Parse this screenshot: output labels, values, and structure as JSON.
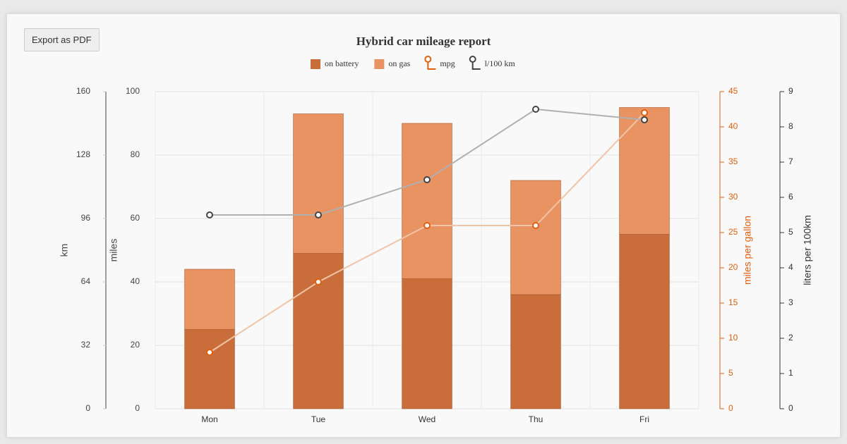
{
  "button": {
    "label": "Export as PDF"
  },
  "chart_data": {
    "type": "bar",
    "stacked": true,
    "title": "Hybrid car mileage report",
    "categories": [
      "Mon",
      "Tue",
      "Wed",
      "Thu",
      "Fri"
    ],
    "axes": [
      {
        "id": "y",
        "label": "miles",
        "side": "left",
        "lim": [
          0,
          100
        ],
        "ticks": [
          0,
          20,
          40,
          60,
          80,
          100
        ],
        "color": "#444444"
      },
      {
        "id": "km",
        "label": "km",
        "side": "left",
        "lim": [
          0,
          160
        ],
        "ticks": [
          0,
          32,
          64,
          96,
          128,
          160
        ],
        "color": "#444444"
      },
      {
        "id": "y2",
        "label": "miles per gallon",
        "side": "right",
        "lim": [
          0,
          45
        ],
        "ticks": [
          0,
          5,
          10,
          15,
          20,
          25,
          30,
          35,
          40,
          45
        ],
        "color": "#e0600f"
      },
      {
        "id": "y3",
        "label": "liters per 100km",
        "side": "right",
        "lim": [
          0,
          9
        ],
        "ticks": [
          0,
          1,
          2,
          3,
          4,
          5,
          6,
          7,
          8,
          9
        ],
        "color": "#333333"
      }
    ],
    "grid": true,
    "series": [
      {
        "name": "on battery",
        "type": "bar",
        "axis": "y",
        "color": "#c96d3b",
        "values": [
          25,
          49,
          41,
          36,
          55
        ]
      },
      {
        "name": "on gas",
        "type": "bar",
        "axis": "y",
        "color": "#e99262",
        "values": [
          19,
          44,
          49,
          36,
          40
        ]
      },
      {
        "name": "mpg",
        "type": "line",
        "axis": "y2",
        "color": "#f2c4a6",
        "marker_color": "#e0600f",
        "values": [
          8,
          18,
          26,
          26,
          42
        ]
      },
      {
        "name": "l/100 km",
        "type": "line",
        "axis": "y3",
        "color": "#b0b0b0",
        "marker_color": "#444444",
        "values": [
          5.5,
          5.5,
          6.5,
          8.5,
          8.2
        ]
      }
    ]
  }
}
